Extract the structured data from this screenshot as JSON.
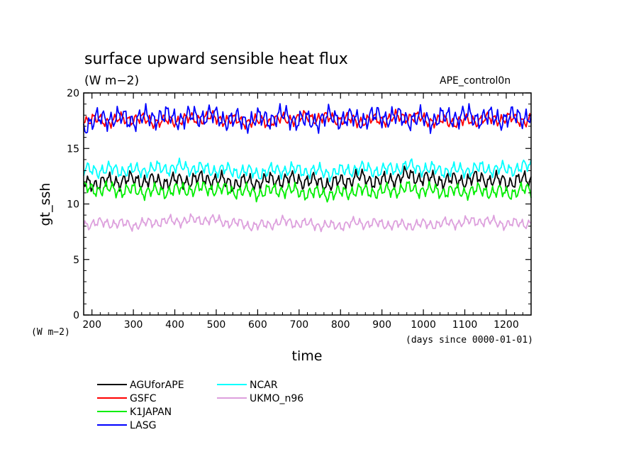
{
  "chart_data": {
    "type": "line",
    "title": "surface upward sensible heat flux",
    "subtitle": "(W m−2)",
    "annotation": "APE_control0n",
    "xlabel": "time",
    "xunits": "(days since 0000-01-01)",
    "ylabel": "gt_ssh",
    "yunits": "(W m−2)",
    "xlim": [
      180,
      1260
    ],
    "ylim": [
      0,
      20
    ],
    "xticks": [
      200,
      300,
      400,
      500,
      600,
      700,
      800,
      900,
      1000,
      1100,
      1200
    ],
    "yticks": [
      0,
      5,
      10,
      15,
      20
    ],
    "grid": false,
    "legend_position": "bottom-left",
    "series": [
      {
        "name": "AGUforAPE",
        "color": "#000000",
        "x": [
          180,
          240,
          300,
          360,
          420,
          480,
          540,
          600,
          660,
          720,
          780,
          840,
          900,
          960,
          1020,
          1080,
          1140,
          1200,
          1260
        ],
        "values": [
          11.8,
          12.0,
          12.2,
          12.0,
          12.1,
          12.3,
          11.9,
          12.0,
          12.2,
          12.1,
          11.8,
          12.4,
          12.0,
          12.6,
          12.2,
          12.1,
          12.3,
          12.0,
          12.2
        ]
      },
      {
        "name": "GSFC",
        "color": "#ff0000",
        "x": [
          180,
          240,
          300,
          360,
          420,
          480,
          540,
          600,
          660,
          720,
          780,
          840,
          900,
          960,
          1020,
          1080,
          1140,
          1200,
          1260
        ],
        "values": [
          17.6,
          17.5,
          17.7,
          17.4,
          17.6,
          17.8,
          17.5,
          17.4,
          17.6,
          17.8,
          17.7,
          17.5,
          17.6,
          17.9,
          17.5,
          17.4,
          17.6,
          17.7,
          17.5
        ]
      },
      {
        "name": "K1JAPAN",
        "color": "#00ee00",
        "x": [
          180,
          240,
          300,
          360,
          420,
          480,
          540,
          600,
          660,
          720,
          780,
          840,
          900,
          960,
          1020,
          1080,
          1140,
          1200,
          1260
        ],
        "values": [
          11.4,
          11.3,
          11.2,
          11.1,
          11.3,
          11.4,
          11.2,
          11.0,
          11.3,
          11.0,
          10.9,
          11.2,
          11.1,
          11.4,
          11.2,
          11.1,
          11.2,
          11.0,
          11.3
        ]
      },
      {
        "name": "LASG",
        "color": "#0000ff",
        "x": [
          180,
          240,
          300,
          360,
          420,
          480,
          540,
          600,
          660,
          720,
          780,
          840,
          900,
          960,
          1020,
          1080,
          1140,
          1200,
          1260
        ],
        "values": [
          17.2,
          17.8,
          17.6,
          17.9,
          17.7,
          18.0,
          17.5,
          17.6,
          17.9,
          17.4,
          17.8,
          17.6,
          17.9,
          17.7,
          17.6,
          17.9,
          17.8,
          17.7,
          18.0
        ]
      },
      {
        "name": "NCAR",
        "color": "#00ffff",
        "x": [
          180,
          240,
          300,
          360,
          420,
          480,
          540,
          600,
          660,
          720,
          780,
          840,
          900,
          960,
          1020,
          1080,
          1140,
          1200,
          1260
        ],
        "values": [
          13.0,
          13.1,
          13.0,
          13.2,
          13.3,
          13.1,
          13.0,
          12.8,
          13.1,
          13.0,
          12.8,
          13.2,
          13.0,
          13.4,
          13.1,
          13.0,
          13.2,
          13.1,
          13.4
        ]
      },
      {
        "name": "UKMO_n96",
        "color": "#dda0dd",
        "x": [
          180,
          240,
          300,
          360,
          420,
          480,
          540,
          600,
          660,
          720,
          780,
          840,
          900,
          960,
          1020,
          1080,
          1140,
          1200,
          1260
        ],
        "values": [
          8.2,
          8.3,
          8.1,
          8.4,
          8.5,
          8.6,
          8.3,
          8.0,
          8.4,
          8.2,
          8.0,
          8.3,
          8.2,
          8.1,
          8.2,
          8.3,
          8.5,
          8.2,
          8.3
        ]
      }
    ]
  }
}
